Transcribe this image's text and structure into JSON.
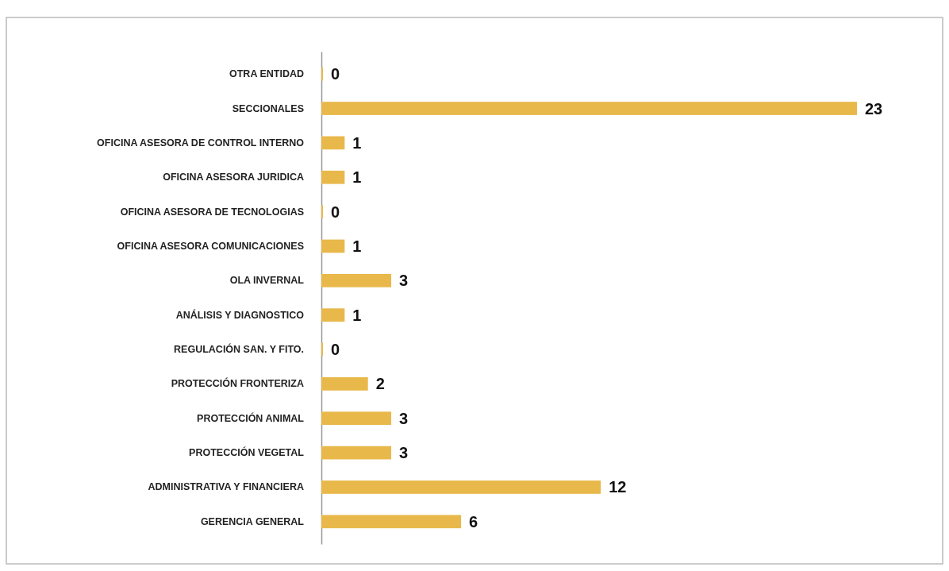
{
  "chart_data": {
    "type": "bar",
    "orientation": "horizontal",
    "categories": [
      "OTRA ENTIDAD",
      "SECCIONALES",
      "OFICINA ASESORA DE CONTROL INTERNO",
      "OFICINA ASESORA JURIDICA",
      "OFICINA ASESORA DE TECNOLOGIAS",
      "OFICINA ASESORA COMUNICACIONES",
      "OLA INVERNAL",
      "ANÁLISIS Y DIAGNOSTICO",
      "REGULACIÓN SAN. Y FITO.",
      "PROTECCIÓN FRONTERIZA",
      "PROTECCIÓN ANIMAL",
      "PROTECCIÓN VEGETAL",
      "ADMINISTRATIVA Y FINANCIERA",
      "GERENCIA GENERAL"
    ],
    "values": [
      0,
      23,
      1,
      1,
      0,
      1,
      3,
      1,
      0,
      2,
      3,
      3,
      12,
      6
    ],
    "color": "#e8b84a",
    "data_labels": true,
    "tick_labels": "y"
  }
}
